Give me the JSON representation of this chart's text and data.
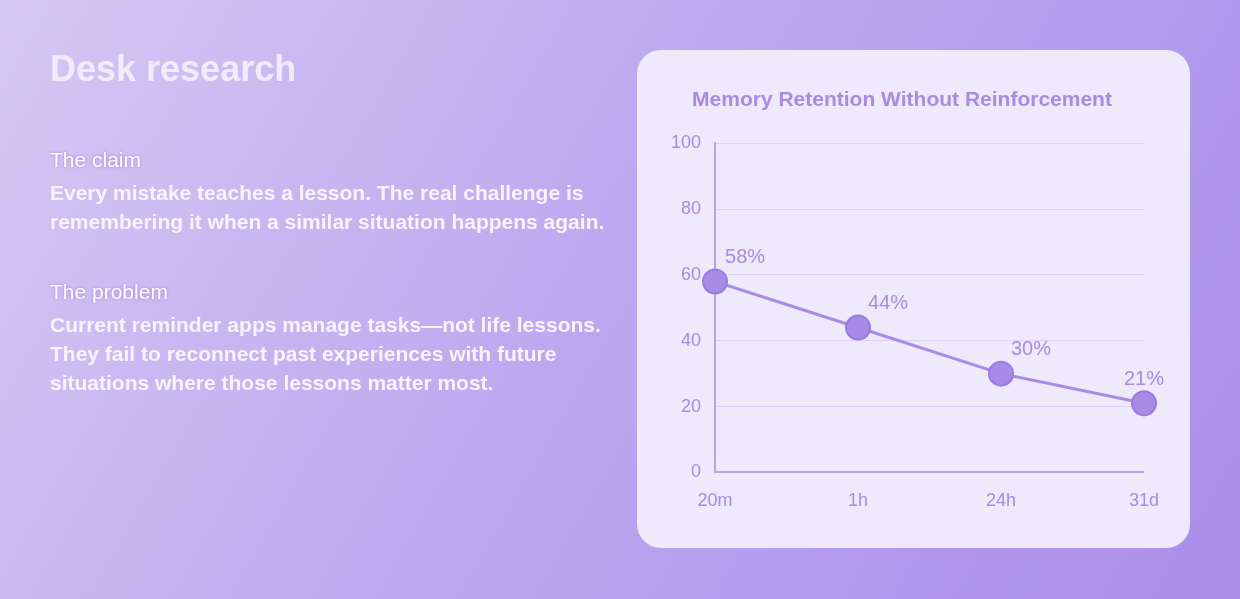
{
  "chart_data": {
    "type": "line",
    "title": "Memory Retention Without Reinforcement",
    "annotations": [
      "Desk research",
      "The claim",
      "Every mistake teaches a lesson. The real challenge is remembering it when a similar situation happens again.",
      "The problem",
      "Current reminder apps manage tasks—not life lessons. They fail to reconnect past experiences with future situations where those lessons matter most."
    ],
    "categories": [
      "20m",
      "1h",
      "24h",
      "31d"
    ],
    "series": [
      {
        "color": "#a88be6",
        "values": [
          58,
          44,
          30,
          21
        ],
        "value_labels": [
          "58%",
          "44%",
          "30%",
          "21%"
        ]
      }
    ],
    "ylim": [
      0,
      100
    ],
    "yticks": [
      0,
      20,
      40,
      60,
      80,
      100
    ],
    "grid": "y",
    "legend": false,
    "marker": "circle",
    "line_style": "solid"
  }
}
